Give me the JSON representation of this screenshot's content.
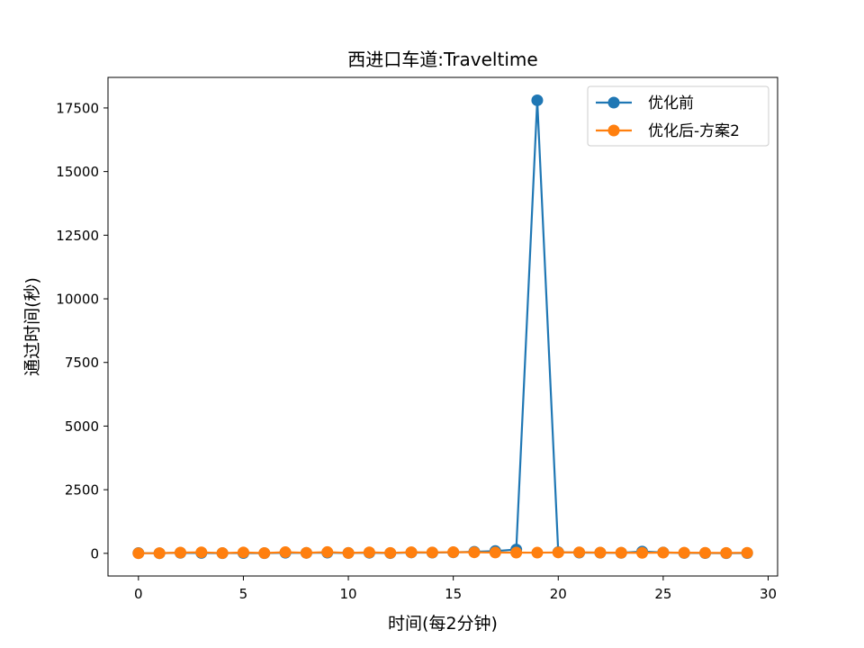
{
  "chart_data": {
    "type": "line",
    "title": "西进口车道:Traveltime",
    "xlabel": "时间(每2分钟)",
    "ylabel": "通过时间(秒)",
    "xlim": [
      -1.45,
      30.45
    ],
    "ylim": [
      -890,
      18700
    ],
    "xticks": [
      0,
      5,
      10,
      15,
      20,
      25,
      30
    ],
    "yticks": [
      0,
      2500,
      5000,
      7500,
      10000,
      12500,
      15000,
      17500
    ],
    "grid": false,
    "legend_position": "top-right",
    "x": [
      0,
      1,
      2,
      3,
      4,
      5,
      6,
      7,
      8,
      9,
      10,
      11,
      12,
      13,
      14,
      15,
      16,
      17,
      18,
      19,
      20,
      21,
      22,
      23,
      24,
      25,
      26,
      27,
      28,
      29
    ],
    "series": [
      {
        "name": "优化前",
        "color": "#1f77b4",
        "marker": "circle",
        "values": [
          10,
          5,
          20,
          15,
          8,
          12,
          6,
          25,
          18,
          30,
          14,
          22,
          9,
          35,
          28,
          40,
          60,
          90,
          150,
          17800,
          45,
          30,
          25,
          20,
          70,
          35,
          15,
          10,
          8,
          12
        ]
      },
      {
        "name": "优化后-方案2",
        "color": "#ff7f0e",
        "marker": "circle",
        "values": [
          5,
          8,
          30,
          40,
          10,
          35,
          12,
          45,
          20,
          50,
          15,
          38,
          18,
          42,
          36,
          48,
          40,
          32,
          30,
          28,
          35,
          40,
          30,
          25,
          20,
          30,
          25,
          20,
          15,
          22
        ]
      }
    ]
  }
}
